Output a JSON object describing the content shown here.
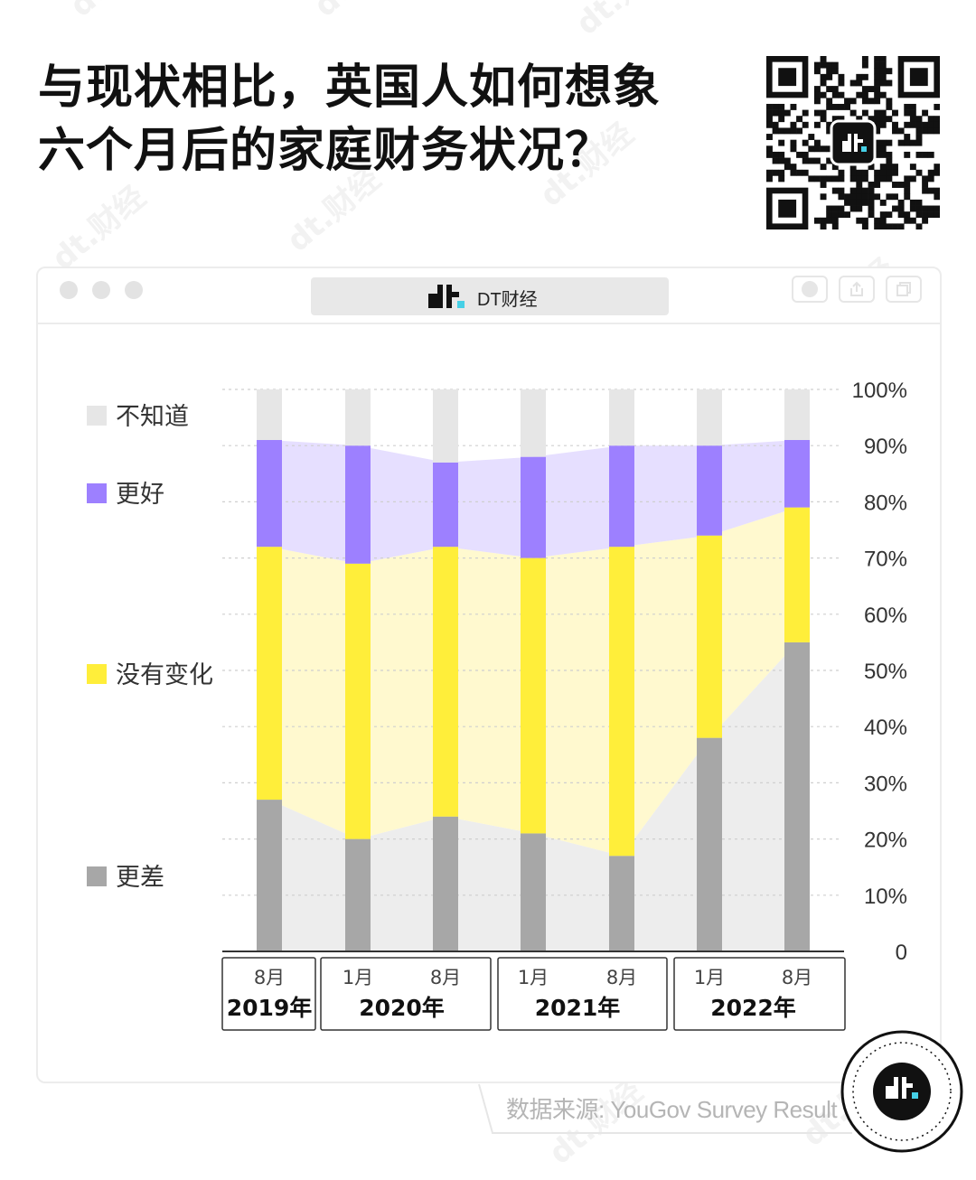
{
  "title": {
    "line1": "与现状相比，英国人如何想象",
    "line2": "六个月后的家庭财务状况？"
  },
  "window": {
    "brand": "DT财经"
  },
  "watermark_text": "dt.财经",
  "colors": {
    "worse": "#a7a7a7",
    "no_change": "#ffee3a",
    "better": "#9d80ff",
    "dont_know": "#e6e6e6",
    "worse_band": "#ededed",
    "no_change_band": "#fff9cf",
    "better_band": "#e6dfff"
  },
  "chart_data": {
    "type": "bar",
    "stacked": true,
    "categories": [
      "2019年8月",
      "2020年1月",
      "2020年8月",
      "2021年1月",
      "2021年8月",
      "2022年1月",
      "2022年8月"
    ],
    "x_month_labels": [
      "8月",
      "1月",
      "8月",
      "1月",
      "8月",
      "1月",
      "8月"
    ],
    "x_year_groups": [
      {
        "year": "2019年",
        "span": [
          0,
          0
        ]
      },
      {
        "year": "2020年",
        "span": [
          1,
          2
        ]
      },
      {
        "year": "2021年",
        "span": [
          3,
          4
        ]
      },
      {
        "year": "2022年",
        "span": [
          5,
          6
        ]
      }
    ],
    "series": [
      {
        "name": "更差",
        "values": [
          27,
          20,
          24,
          21,
          17,
          38,
          55
        ]
      },
      {
        "name": "没有变化",
        "values": [
          45,
          49,
          48,
          49,
          55,
          36,
          24
        ]
      },
      {
        "name": "更好",
        "values": [
          19,
          21,
          15,
          18,
          18,
          16,
          12
        ]
      },
      {
        "name": "不知道",
        "values": [
          9,
          10,
          13,
          12,
          10,
          10,
          9
        ]
      }
    ],
    "legend": [
      "不知道",
      "更好",
      "没有变化",
      "更差"
    ],
    "legend_position": "left",
    "y_ticks": [
      "0",
      "10%",
      "20%",
      "30%",
      "40%",
      "50%",
      "60%",
      "70%",
      "80%",
      "90%",
      "100%"
    ],
    "ylim": [
      0,
      100
    ],
    "y_axis_position": "right",
    "grid": true
  },
  "source": "数据来源: YouGov Survey Result"
}
